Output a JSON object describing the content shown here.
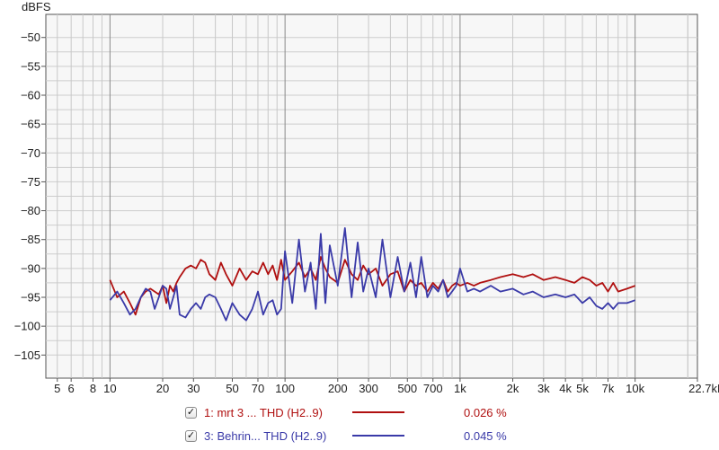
{
  "chart_data": {
    "type": "line",
    "ylabel": "dBFS",
    "xlabel": "",
    "x_scale": "log",
    "xlim": [
      4.3,
      22700
    ],
    "ylim": [
      -109,
      -46
    ],
    "grid": true,
    "y_ticks": [
      -50,
      -55,
      -60,
      -65,
      -70,
      -75,
      -80,
      -85,
      -90,
      -95,
      -100,
      -105
    ],
    "y_tick_labels": [
      "−50",
      "−55",
      "−60",
      "−65",
      "−70",
      "−75",
      "−80",
      "−85",
      "−90",
      "−95",
      "−100",
      "−105"
    ],
    "x_ticks": [
      5,
      6,
      8,
      10,
      20,
      30,
      50,
      70,
      100,
      200,
      300,
      500,
      700,
      1000,
      2000,
      3000,
      4000,
      5000,
      7000,
      10000,
      22700
    ],
    "x_tick_labels": [
      "5",
      "6",
      "8",
      "10",
      "20",
      "30",
      "50",
      "70",
      "100",
      "200",
      "300",
      "500",
      "700",
      "1k",
      "2k",
      "3k",
      "4k",
      "5k",
      "7k",
      "10k",
      "22.7kHz"
    ],
    "series": [
      {
        "name": "1: mrt 3 ... THD (H2..9)",
        "color": "#b01010",
        "value_label": "0.026 %",
        "x": [
          10,
          11,
          12,
          13,
          14,
          15,
          16,
          17,
          18,
          19,
          20,
          21,
          22,
          23,
          24,
          25,
          27,
          29,
          31,
          33,
          35,
          37,
          40,
          43,
          46,
          50,
          55,
          60,
          65,
          70,
          75,
          80,
          85,
          90,
          95,
          100,
          110,
          120,
          130,
          140,
          150,
          160,
          170,
          180,
          200,
          220,
          240,
          260,
          280,
          300,
          330,
          360,
          400,
          440,
          480,
          520,
          560,
          600,
          650,
          700,
          750,
          800,
          850,
          900,
          950,
          1000,
          1100,
          1200,
          1300,
          1500,
          1700,
          2000,
          2300,
          2600,
          3000,
          3500,
          4000,
          4500,
          5000,
          5500,
          6000,
          6500,
          7000,
          7500,
          8000,
          9000,
          10000
        ],
        "y": [
          -92,
          -95,
          -94,
          -96,
          -98,
          -95,
          -94,
          -93.5,
          -94,
          -94.5,
          -93,
          -96,
          -93,
          -94,
          -92.5,
          -91.5,
          -90,
          -89.5,
          -90,
          -88.5,
          -89,
          -91,
          -92,
          -89,
          -91,
          -93,
          -90,
          -92,
          -90.5,
          -91,
          -89,
          -91,
          -89.5,
          -92,
          -88.5,
          -92,
          -90.5,
          -89,
          -91.5,
          -90,
          -92,
          -88,
          -90,
          -91.5,
          -92.5,
          -88.5,
          -91,
          -92,
          -89.5,
          -91,
          -90,
          -93,
          -91,
          -90.5,
          -94,
          -92,
          -93,
          -92.5,
          -94,
          -92.5,
          -93.5,
          -92,
          -94,
          -93,
          -92.5,
          -93,
          -92.5,
          -93,
          -92.5,
          -92,
          -91.5,
          -91,
          -91.5,
          -91,
          -92,
          -91.5,
          -92,
          -92.5,
          -91.5,
          -92,
          -93,
          -92.5,
          -94,
          -92.5,
          -94,
          -93.5,
          -93
        ]
      },
      {
        "name": "3: Behrin... THD (H2..9)",
        "color": "#3a3aa8",
        "value_label": "0.045 %",
        "x": [
          10,
          11,
          12,
          13,
          14,
          15,
          16,
          17,
          18,
          19,
          20,
          21,
          22,
          23,
          24,
          25,
          27,
          29,
          31,
          33,
          35,
          37,
          40,
          43,
          46,
          50,
          55,
          60,
          65,
          70,
          75,
          80,
          85,
          90,
          95,
          100,
          110,
          120,
          130,
          140,
          150,
          160,
          170,
          180,
          200,
          220,
          240,
          260,
          280,
          300,
          330,
          360,
          400,
          440,
          480,
          520,
          560,
          600,
          650,
          700,
          750,
          800,
          850,
          900,
          950,
          1000,
          1100,
          1200,
          1300,
          1500,
          1700,
          2000,
          2300,
          2600,
          3000,
          3500,
          4000,
          4500,
          5000,
          5500,
          6000,
          6500,
          7000,
          7500,
          8000,
          9000,
          10000
        ],
        "y": [
          -95.5,
          -94,
          -96,
          -98,
          -97,
          -95,
          -93.5,
          -94,
          -97,
          -95,
          -93,
          -93.5,
          -97,
          -95,
          -93,
          -98,
          -98.5,
          -97,
          -96,
          -97,
          -95,
          -94.5,
          -95,
          -97,
          -99,
          -96,
          -98,
          -99,
          -97,
          -94,
          -98,
          -96,
          -95.5,
          -98,
          -97,
          -87,
          -96,
          -85,
          -94,
          -89,
          -97,
          -84,
          -96,
          -86,
          -93,
          -83,
          -95,
          -85.5,
          -94,
          -90,
          -95,
          -85,
          -95,
          -88,
          -94,
          -89,
          -95,
          -88,
          -95,
          -93,
          -94,
          -92,
          -95,
          -94,
          -93,
          -90,
          -94,
          -93.5,
          -94,
          -93,
          -94,
          -93.5,
          -94.5,
          -94,
          -95,
          -94.5,
          -95,
          -94.5,
          -96,
          -95,
          -96.5,
          -97,
          -96,
          -97,
          -96,
          -96,
          -95.5
        ]
      }
    ],
    "legend": {
      "position": "bottom",
      "entries": [
        {
          "check": "✓",
          "label": "1: mrt 3 ... THD (H2..9)",
          "value": "0.026 %"
        },
        {
          "check": "✓",
          "label": "3: Behrin... THD (H2..9)",
          "value": "0.045 %"
        }
      ]
    }
  },
  "colors": {
    "plot_background": "#f7f7f7",
    "grid_minor": "#c8c8c8",
    "grid_major": "#8c8c8c",
    "series_1": "#b01010",
    "series_2": "#3a3aa8"
  }
}
